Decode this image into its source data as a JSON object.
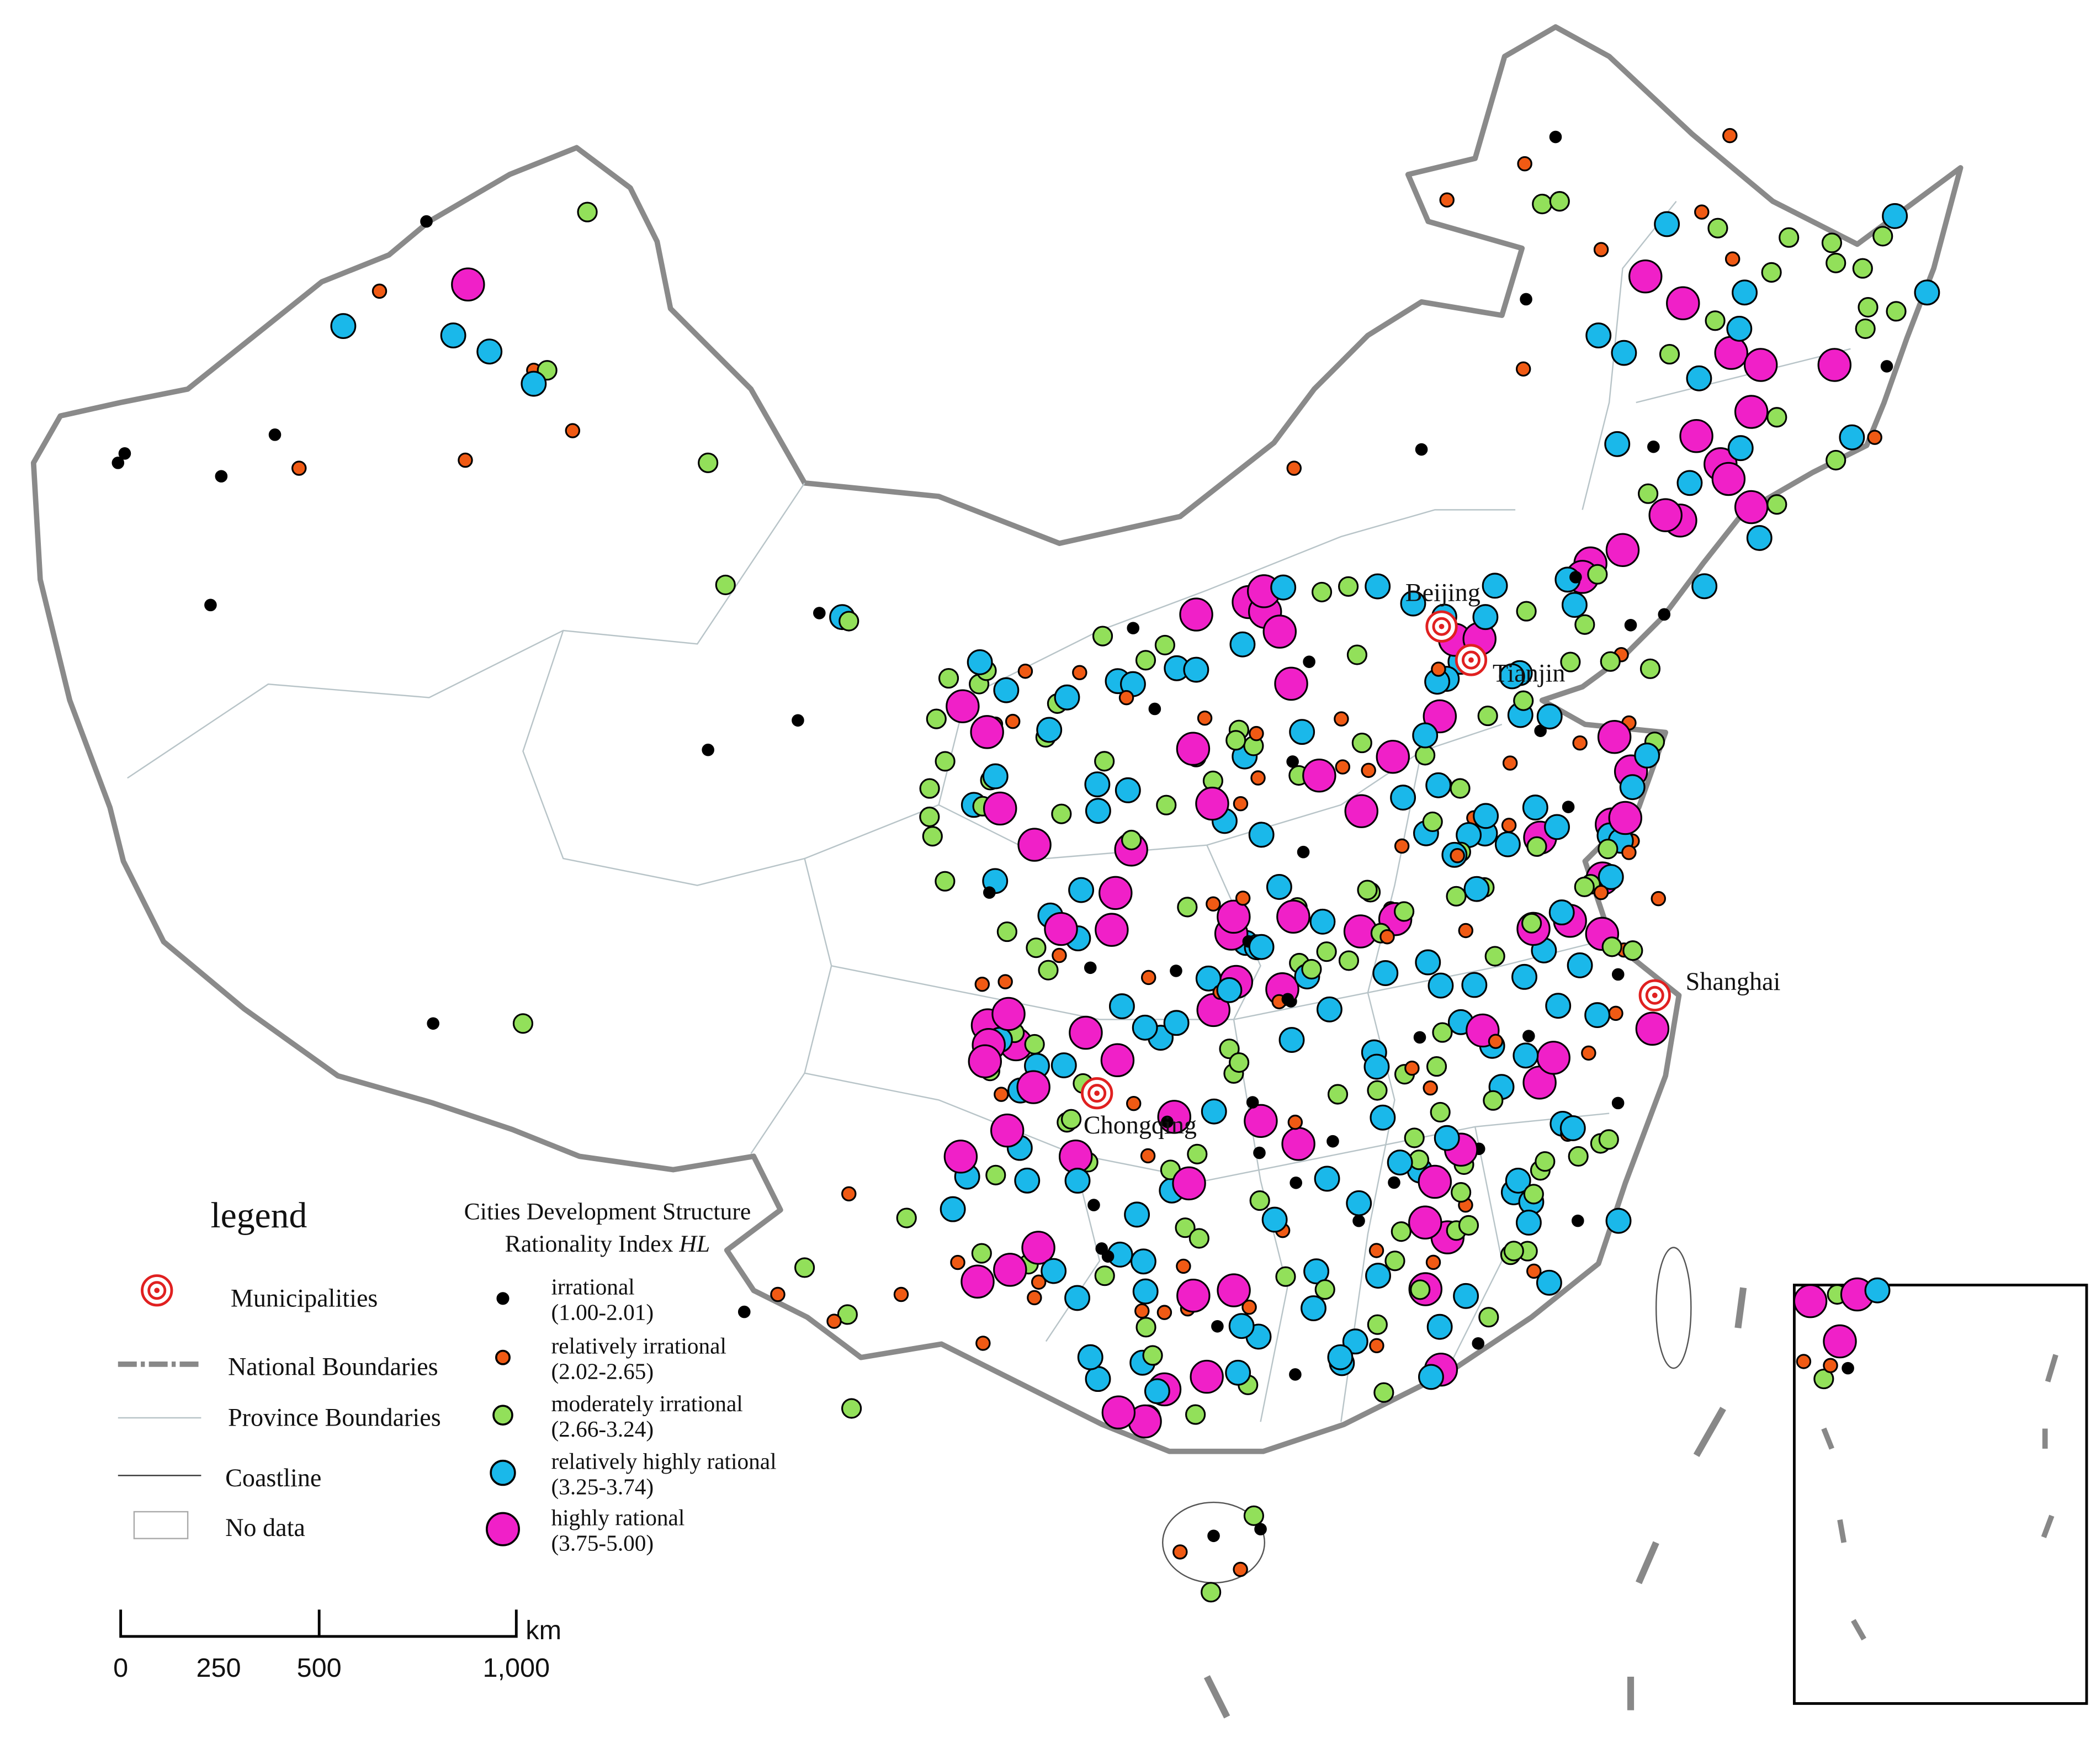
{
  "legend": {
    "title": "legend",
    "items": [
      "Municipalities",
      "National Boundaries",
      "Province Boundaries",
      "Coastline",
      "No data"
    ]
  },
  "index_legend": {
    "title_line1": "Cities Development  Structure",
    "title_line2": "Rationality Index ",
    "title_symbol": "HL",
    "classes": [
      {
        "name": "irrational",
        "range": "(1.00-2.01)",
        "color": "#000000"
      },
      {
        "name": "relatively irrational",
        "range": "(2.02-2.65)",
        "color": "#f05a14"
      },
      {
        "name": "moderately irrational",
        "range": "(2.66-3.24)",
        "color": "#92e05a"
      },
      {
        "name": "relatively highly rational",
        "range": "(3.25-3.74)",
        "color": "#1ab8ea"
      },
      {
        "name": "highly rational",
        "range": "(3.75-5.00)",
        "color": "#f020c8"
      }
    ]
  },
  "municipalities": [
    "Beijing",
    "Tianjin",
    "Shanghai",
    "Chongqing"
  ],
  "scale_bar": {
    "labels": [
      "0",
      "250",
      "500",
      "1,000"
    ],
    "unit": "km"
  }
}
